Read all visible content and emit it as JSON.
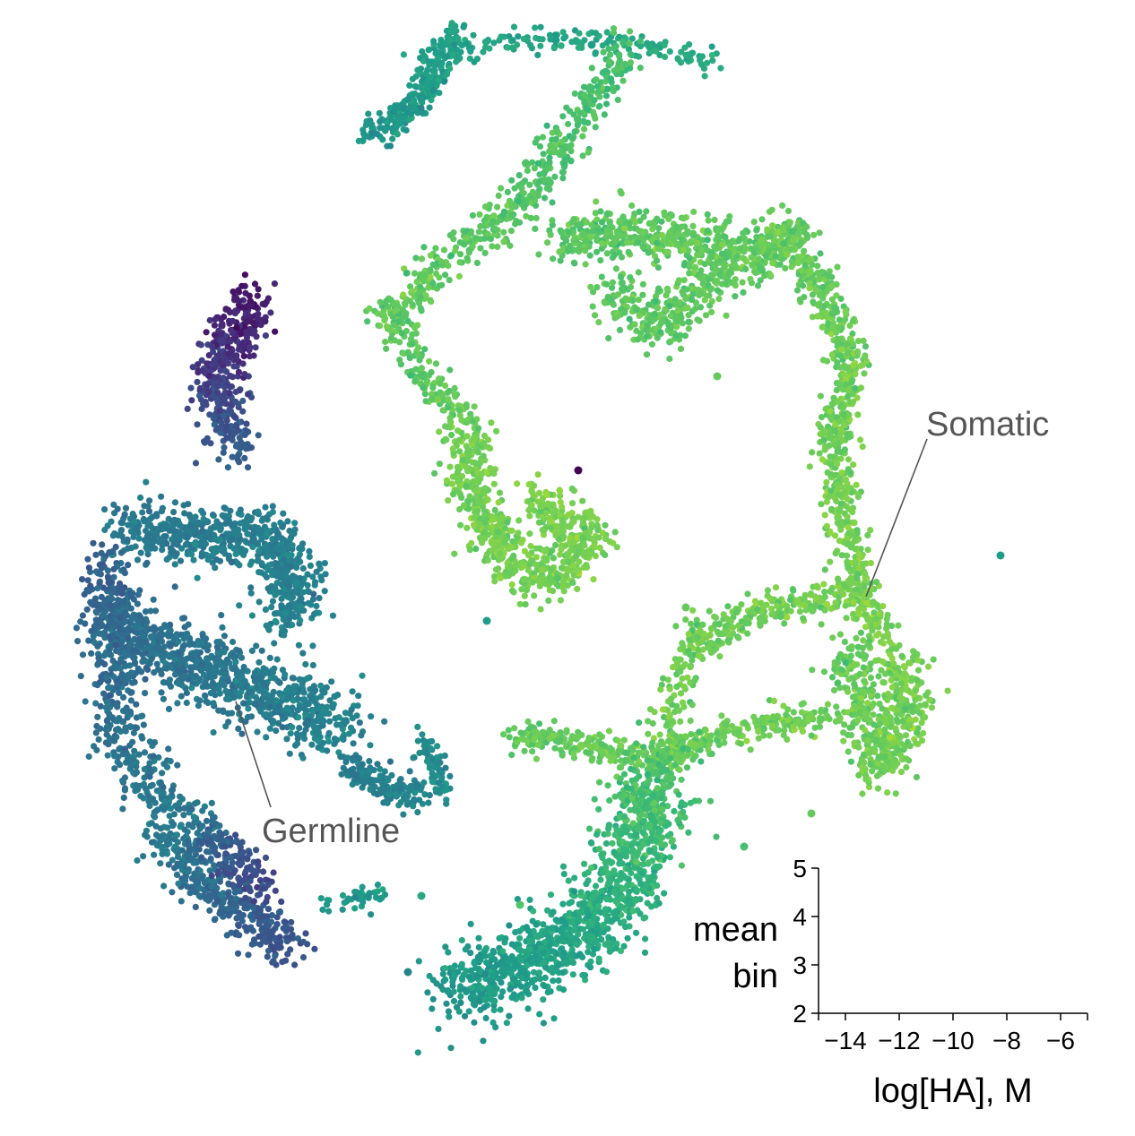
{
  "chart_data": {
    "type": "scatter",
    "title": "",
    "colormap": "viridis",
    "annotations": [
      {
        "text": "Somatic"
      },
      {
        "text": "Germline"
      }
    ],
    "inset_axes": {
      "xlabel": "log[HA], M",
      "ylabel_lines": [
        "mean",
        "bin"
      ],
      "xlim": [
        -15,
        -5
      ],
      "ylim": [
        2,
        5
      ],
      "xticks": [
        -14,
        -12,
        -10,
        -8,
        -6
      ],
      "yticks": [
        2,
        3,
        4,
        5
      ],
      "xtick_labels": [
        "−14",
        "−12",
        "−10",
        "−8",
        "−6"
      ],
      "ytick_labels": [
        "2",
        "3",
        "4",
        "5"
      ]
    },
    "colors": {
      "somatic": "#a0d84a",
      "germline": "#3a7f8f",
      "dark": "#3b2a6b",
      "annotation": "#555555"
    }
  }
}
